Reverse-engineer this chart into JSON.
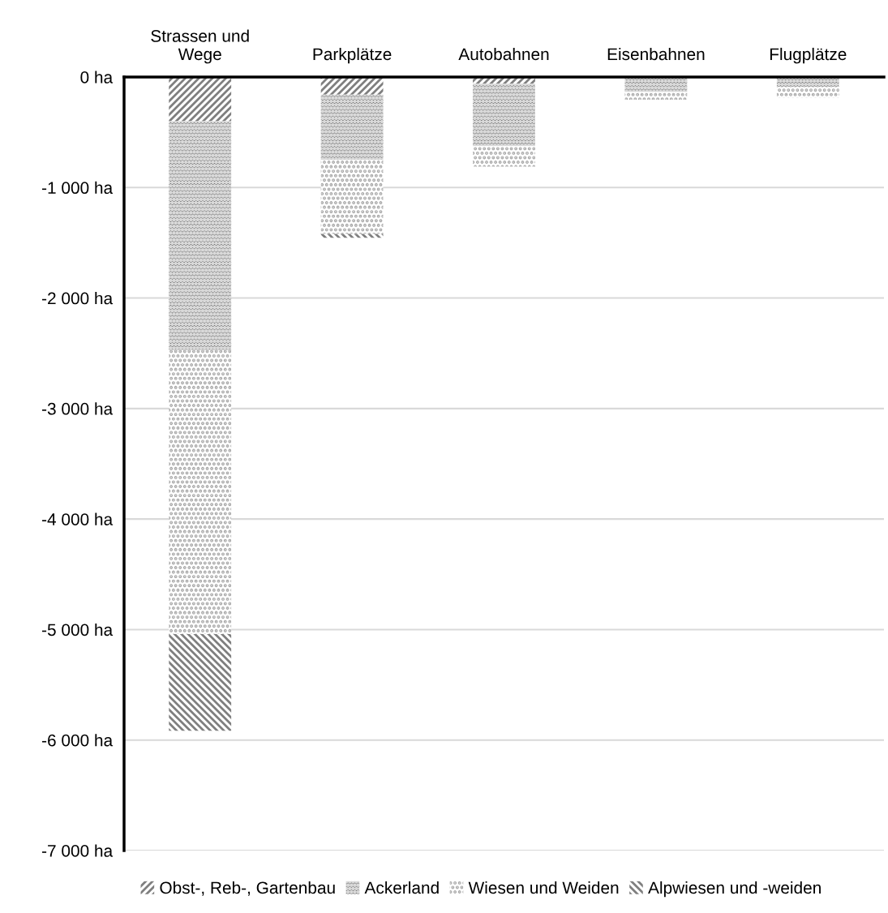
{
  "chart_data": {
    "type": "bar",
    "stacked": true,
    "categories": [
      "Strassen und\nWege",
      "Parkplätze",
      "Autobahnen",
      "Eisenbahnen",
      "Flugplätze"
    ],
    "series": [
      {
        "name": "Obst-, Reb-, Gartenbau",
        "color": "#7f7f7f",
        "values": [
          -400,
          -160,
          -60,
          0,
          0
        ]
      },
      {
        "name": "Ackerland",
        "color": "#5f5f5f",
        "values": [
          -2070,
          -590,
          -565,
          -135,
          -90
        ]
      },
      {
        "name": "Wiesen und Weiden",
        "color": "#a6a6a6",
        "values": [
          -2570,
          -670,
          -185,
          -70,
          -95
        ]
      },
      {
        "name": "Alpwiesen und -weiden",
        "color": "#7f7f7f",
        "values": [
          -875,
          -35,
          0,
          0,
          0
        ]
      }
    ],
    "ylim": [
      -7000,
      0
    ],
    "yticks": [
      {
        "value": 0,
        "label": "0 ha"
      },
      {
        "value": -1000,
        "label": "-1 000 ha"
      },
      {
        "value": -2000,
        "label": "-2 000 ha"
      },
      {
        "value": -3000,
        "label": "-3 000 ha"
      },
      {
        "value": -4000,
        "label": "-4 000 ha"
      },
      {
        "value": -5000,
        "label": "-5 000 ha"
      },
      {
        "value": -6000,
        "label": "-6 000 ha"
      },
      {
        "value": -7000,
        "label": "-7 000 ha"
      }
    ],
    "grid": "y",
    "legend": "bottom"
  }
}
